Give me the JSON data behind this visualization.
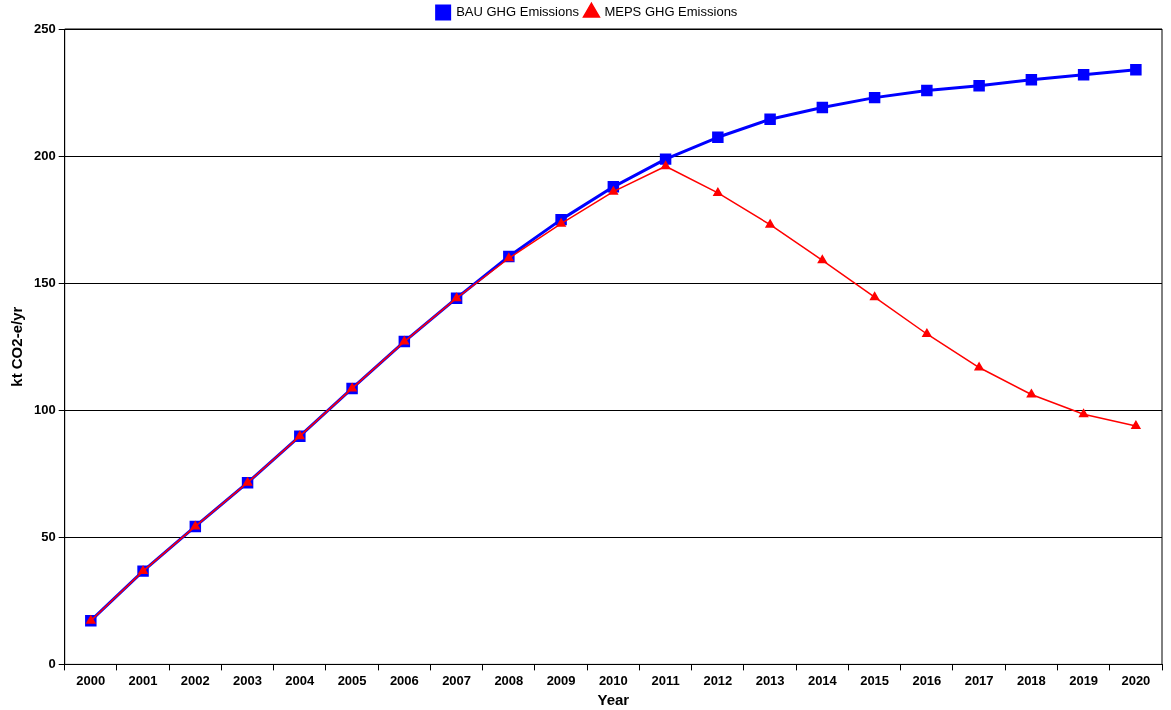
{
  "chart_data": {
    "type": "line",
    "xlabel": "Year",
    "ylabel": "kt CO2-e/yr",
    "categories": [
      "2000",
      "2001",
      "2002",
      "2003",
      "2004",
      "2005",
      "2006",
      "2007",
      "2008",
      "2009",
      "2010",
      "2011",
      "2012",
      "2013",
      "2014",
      "2015",
      "2016",
      "2017",
      "2018",
      "2019",
      "2020"
    ],
    "series": [
      {
        "name": "BAU GHG Emissions",
        "color": "#0000ff",
        "marker": "square",
        "values": [
          17.2,
          36.7,
          54.3,
          71.5,
          89.8,
          108.6,
          127,
          144.1,
          160.5,
          175,
          187.9,
          198.8,
          207.4,
          214.5,
          219.1,
          223,
          225.8,
          227.7,
          230,
          232,
          234
        ]
      },
      {
        "name": "MEPS GHG Emissions",
        "color": "#ff0000",
        "marker": "triangle",
        "values": [
          17.2,
          36.7,
          54.3,
          71.5,
          89.8,
          108.6,
          127,
          144.1,
          159.8,
          173.4,
          186,
          196,
          185.5,
          173,
          159,
          144.5,
          130,
          116.8,
          106.2,
          98.4,
          93.8
        ]
      }
    ],
    "ylim": [
      0,
      250
    ],
    "yticks": [
      0,
      50,
      100,
      150,
      200,
      250
    ],
    "grid": "y",
    "legend": "top"
  }
}
